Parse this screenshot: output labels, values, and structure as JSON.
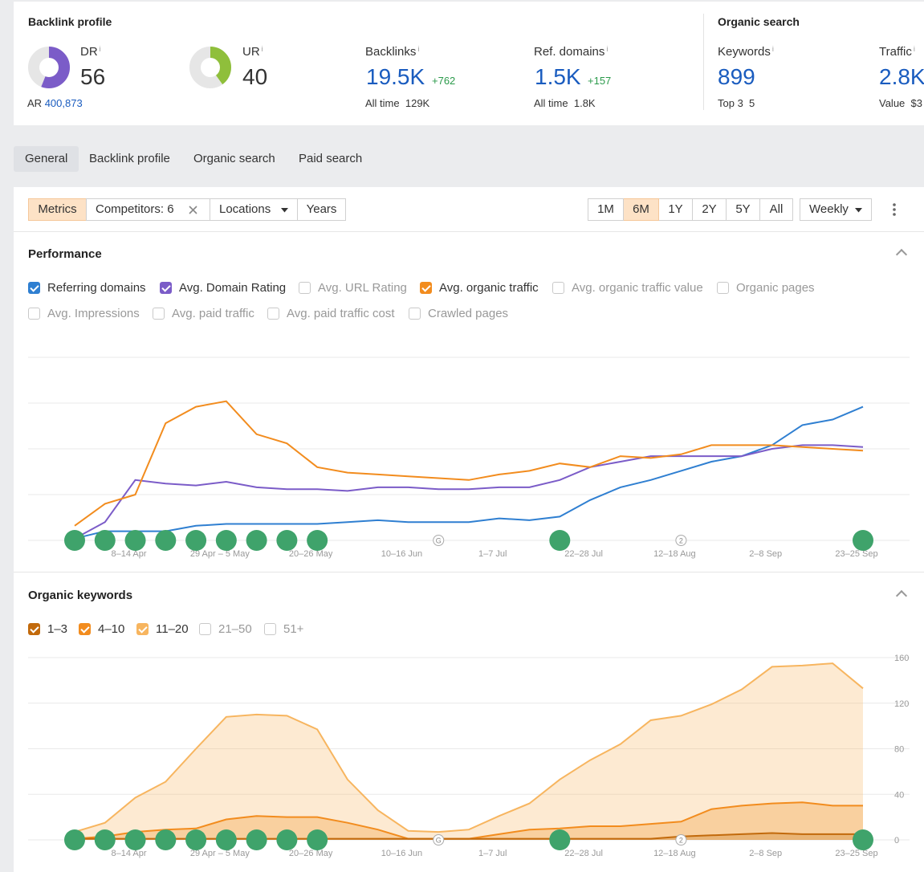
{
  "backlink_profile": {
    "title": "Backlink profile",
    "dr": {
      "label": "DR",
      "info": "i",
      "value": "56",
      "ring_fraction": 0.56,
      "color": "#7b5cc8"
    },
    "ur": {
      "label": "UR",
      "info": "i",
      "value": "40",
      "ring_fraction": 0.4,
      "color": "#8fbf3b"
    },
    "ar": {
      "label": "AR",
      "value": "400,873"
    },
    "backlinks": {
      "label": "Backlinks",
      "info": "i",
      "value": "19.5K",
      "delta": "+762",
      "sub_label": "All time",
      "sub_value": "129K"
    },
    "ref_domains": {
      "label": "Ref. domains",
      "info": "i",
      "value": "1.5K",
      "delta": "+157",
      "sub_label": "All time",
      "sub_value": "1.8K"
    }
  },
  "organic_search": {
    "title": "Organic search",
    "keywords": {
      "label": "Keywords",
      "info": "i",
      "value": "899",
      "sub_label": "Top 3",
      "sub_value": "5"
    },
    "traffic": {
      "label": "Traffic",
      "info": "i",
      "value": "2.8K",
      "sub_label": "Value",
      "sub_value": "$3"
    }
  },
  "tabs": [
    "General",
    "Backlink profile",
    "Organic search",
    "Paid search"
  ],
  "toolbar": {
    "metrics": "Metrics",
    "competitors": "Competitors: 6",
    "locations": "Locations",
    "years": "Years",
    "ranges": [
      "1M",
      "6M",
      "1Y",
      "2Y",
      "5Y",
      "All"
    ],
    "active_range": "6M",
    "interval": "Weekly"
  },
  "performance": {
    "title": "Performance",
    "checkboxes": [
      {
        "label": "Referring domains",
        "checked": true,
        "color": "#2f7fd1"
      },
      {
        "label": "Avg. Domain Rating",
        "checked": true,
        "color": "#7b5cc8"
      },
      {
        "label": "Avg. URL Rating",
        "checked": false
      },
      {
        "label": "Avg. organic traffic",
        "checked": true,
        "color": "#f28c1e"
      },
      {
        "label": "Avg. organic traffic value",
        "checked": false
      },
      {
        "label": "Organic pages",
        "checked": false
      },
      {
        "label": "Avg. Impressions",
        "checked": false
      },
      {
        "label": "Avg. paid traffic",
        "checked": false
      },
      {
        "label": "Avg. paid traffic cost",
        "checked": false
      },
      {
        "label": "Crawled pages",
        "checked": false
      }
    ]
  },
  "organic_keywords": {
    "title": "Organic keywords",
    "checkboxes": [
      {
        "label": "1–3",
        "checked": true,
        "color": "#c26a0c"
      },
      {
        "label": "4–10",
        "checked": true,
        "color": "#f28c1e"
      },
      {
        "label": "11–20",
        "checked": true,
        "color": "#f7b55f"
      },
      {
        "label": "21–50",
        "checked": false
      },
      {
        "label": "51+",
        "checked": false
      }
    ]
  },
  "chart_data": [
    {
      "type": "line",
      "title": "Performance",
      "x_ticks": [
        "8–14 Apr",
        "29 Apr – 5 May",
        "20–26 May",
        "10–16 Jun",
        "1–7 Jul",
        "22–28 Jul",
        "12–18 Aug",
        "2–8 Sep",
        "23–25 Sep"
      ],
      "x_count": 27,
      "ylim": [
        0,
        100
      ],
      "series": [
        {
          "name": "Referring domains",
          "color": "#2f7fd1",
          "values": [
            1,
            5,
            5,
            5,
            8,
            9,
            9,
            9,
            9,
            10,
            11,
            10,
            10,
            10,
            12,
            11,
            13,
            22,
            29,
            33,
            38,
            43,
            46,
            52,
            63,
            66,
            73
          ]
        },
        {
          "name": "Avg. Domain Rating",
          "color": "#7b5cc8",
          "values": [
            1,
            10,
            33,
            31,
            30,
            32,
            29,
            28,
            28,
            27,
            29,
            29,
            28,
            28,
            29,
            29,
            33,
            40,
            43,
            46,
            46,
            46,
            46,
            50,
            52,
            52,
            51
          ]
        },
        {
          "name": "Avg. organic traffic",
          "color": "#f28c1e",
          "values": [
            8,
            20,
            25,
            64,
            73,
            76,
            58,
            53,
            40,
            37,
            36,
            35,
            34,
            33,
            36,
            38,
            42,
            40,
            46,
            45,
            47,
            52,
            52,
            52,
            51,
            50,
            49
          ]
        }
      ],
      "grid": true,
      "event_markers": {
        "count": 27,
        "filled_indexes": [
          0,
          1,
          2,
          3,
          4,
          5,
          6,
          7,
          8,
          16,
          26
        ],
        "badges": [
          {
            "index": 12,
            "label": "G"
          },
          {
            "index": 20,
            "label": "2"
          }
        ]
      }
    },
    {
      "type": "area",
      "title": "Organic keywords",
      "x_ticks": [
        "8–14 Apr",
        "29 Apr – 5 May",
        "20–26 May",
        "10–16 Jun",
        "1–7 Jul",
        "22–28 Jul",
        "12–18 Aug",
        "2–8 Sep",
        "23–25 Sep"
      ],
      "x_count": 27,
      "y_ticks": [
        "160",
        "120",
        "80",
        "40",
        "0"
      ],
      "ylim": [
        0,
        160
      ],
      "series": [
        {
          "name": "11–20",
          "color": "#f7b55f",
          "values": [
            7,
            15,
            37,
            51,
            80,
            108,
            110,
            109,
            97,
            53,
            26,
            8,
            7,
            9,
            21,
            32,
            53,
            70,
            84,
            105,
            109,
            119,
            132,
            152,
            153,
            155,
            133
          ]
        },
        {
          "name": "4–10",
          "color": "#f28c1e",
          "values": [
            1,
            3,
            7,
            9,
            10,
            18,
            21,
            20,
            20,
            15,
            9,
            1,
            1,
            1,
            5,
            9,
            10,
            12,
            12,
            14,
            16,
            27,
            30,
            32,
            33,
            30,
            30
          ]
        },
        {
          "name": "1–3",
          "color": "#c26a0c",
          "values": [
            1,
            1,
            1,
            1,
            1,
            1,
            1,
            1,
            1,
            1,
            1,
            1,
            1,
            1,
            1,
            1,
            1,
            1,
            1,
            1,
            3,
            4,
            5,
            6,
            5,
            5,
            5
          ]
        }
      ],
      "grid": true,
      "event_markers": {
        "count": 27,
        "filled_indexes": [
          0,
          1,
          2,
          3,
          4,
          5,
          6,
          7,
          8,
          16,
          26
        ],
        "badges": [
          {
            "index": 12,
            "label": "G"
          },
          {
            "index": 20,
            "label": "2"
          }
        ]
      }
    }
  ]
}
